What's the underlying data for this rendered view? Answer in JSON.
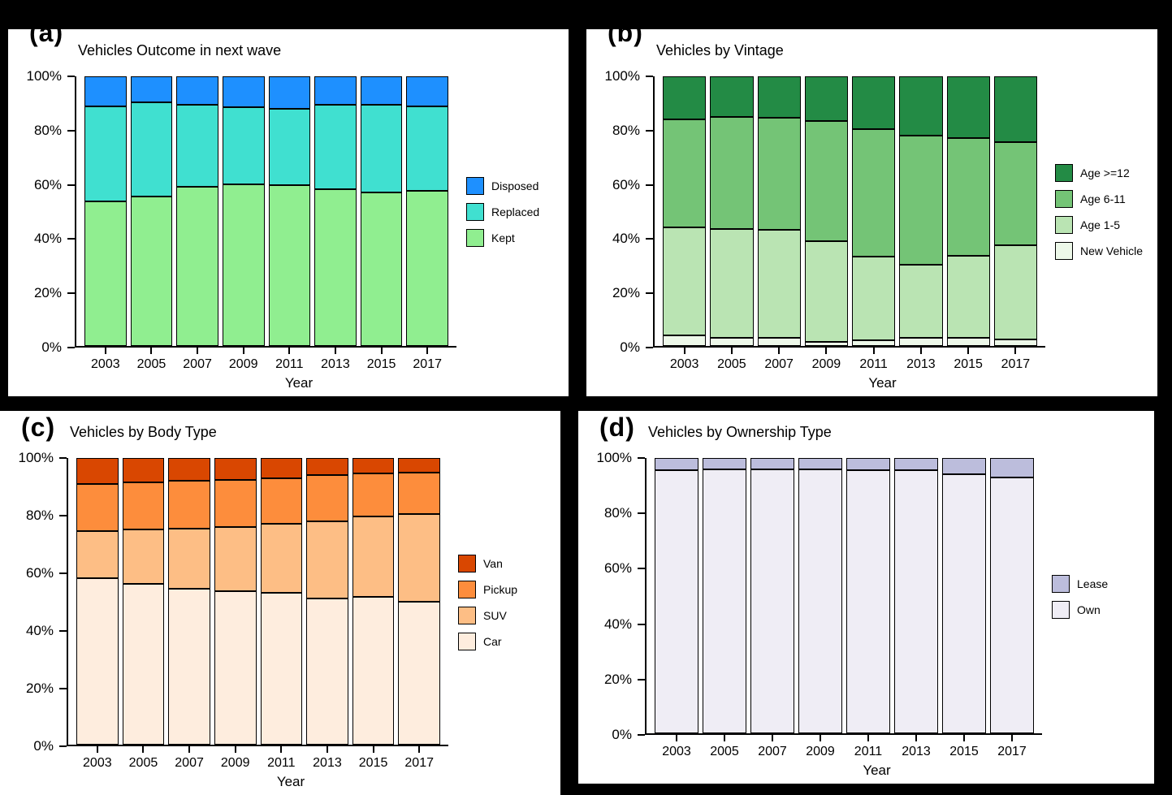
{
  "page": {
    "background": "#000000",
    "panel_background": "#ffffff"
  },
  "panels": [
    {
      "tag": "(a)"
    },
    {
      "tag": "(b)"
    },
    {
      "tag": "(c)"
    },
    {
      "tag": "(d)"
    }
  ],
  "chart_data": [
    {
      "type": "bar",
      "stacked": true,
      "title": "Vehicles Outcome in next wave",
      "xlabel": "Year",
      "ylabel": "",
      "ylim": [
        0,
        100
      ],
      "yticks": [
        "0%",
        "20%",
        "40%",
        "60%",
        "80%",
        "100%"
      ],
      "grid": false,
      "legend_position": "right",
      "categories": [
        "2003",
        "2005",
        "2007",
        "2009",
        "2011",
        "2013",
        "2015",
        "2017"
      ],
      "series": [
        {
          "name": "Kept",
          "color": "#90EE90",
          "values": [
            53.5,
            55.5,
            59,
            60,
            59.5,
            58,
            57,
            57.5
          ]
        },
        {
          "name": "Replaced",
          "color": "#40E0D0",
          "values": [
            35.5,
            35,
            30.5,
            28.5,
            28.5,
            31.5,
            32.5,
            31.5
          ]
        },
        {
          "name": "Disposed",
          "color": "#1E90FF",
          "values": [
            11,
            9.5,
            10.5,
            11.5,
            12,
            10.5,
            10.5,
            11
          ]
        }
      ]
    },
    {
      "type": "bar",
      "stacked": true,
      "title": "Vehicles by Vintage",
      "xlabel": "Year",
      "ylabel": "",
      "ylim": [
        0,
        100
      ],
      "yticks": [
        "0%",
        "20%",
        "40%",
        "60%",
        "80%",
        "100%"
      ],
      "grid": false,
      "legend_position": "right",
      "categories": [
        "2003",
        "2005",
        "2007",
        "2009",
        "2011",
        "2013",
        "2015",
        "2017"
      ],
      "series": [
        {
          "name": "New Vehicle",
          "color": "#EDF8E9",
          "values": [
            4,
            3,
            3,
            1.5,
            2,
            3,
            3,
            2.5
          ]
        },
        {
          "name": "Age 1-5",
          "color": "#BAE4B3",
          "values": [
            40,
            40.5,
            40,
            37.5,
            31,
            27,
            30.5,
            35
          ]
        },
        {
          "name": "Age 6-11",
          "color": "#74C476",
          "values": [
            40,
            41.5,
            41.5,
            44.5,
            47.5,
            48,
            43.5,
            38
          ]
        },
        {
          "name": "Age >=12",
          "color": "#238B45",
          "values": [
            16,
            15,
            15.5,
            16.5,
            19.5,
            22,
            23,
            24.5
          ]
        }
      ]
    },
    {
      "type": "bar",
      "stacked": true,
      "title": "Vehicles by Body Type",
      "xlabel": "Year",
      "ylabel": "",
      "ylim": [
        0,
        100
      ],
      "yticks": [
        "0%",
        "20%",
        "40%",
        "60%",
        "80%",
        "100%"
      ],
      "grid": false,
      "legend_position": "right",
      "categories": [
        "2003",
        "2005",
        "2007",
        "2009",
        "2011",
        "2013",
        "2015",
        "2017"
      ],
      "series": [
        {
          "name": "Car",
          "color": "#FEEDDE",
          "values": [
            58,
            56,
            54.5,
            53.5,
            53,
            51,
            51.5,
            50
          ]
        },
        {
          "name": "SUV",
          "color": "#FDBE85",
          "values": [
            16.5,
            19,
            21,
            22.5,
            24,
            27,
            28,
            30.5
          ]
        },
        {
          "name": "Pickup",
          "color": "#FD8D3C",
          "values": [
            16.5,
            16.5,
            16.5,
            16.5,
            16,
            16,
            15,
            14.5
          ]
        },
        {
          "name": "Van",
          "color": "#D94701",
          "values": [
            9,
            8.5,
            8,
            7.5,
            7,
            6,
            5.5,
            5
          ]
        }
      ]
    },
    {
      "type": "bar",
      "stacked": true,
      "title": "Vehicles by Ownership Type",
      "xlabel": "Year",
      "ylabel": "",
      "ylim": [
        0,
        100
      ],
      "yticks": [
        "0%",
        "20%",
        "40%",
        "60%",
        "80%",
        "100%"
      ],
      "grid": false,
      "legend_position": "right",
      "categories": [
        "2003",
        "2005",
        "2007",
        "2009",
        "2011",
        "2013",
        "2015",
        "2017"
      ],
      "series": [
        {
          "name": "Own",
          "color": "#EFEDF5",
          "values": [
            95.5,
            96,
            96,
            96,
            95.5,
            95.5,
            94,
            93
          ]
        },
        {
          "name": "Lease",
          "color": "#BCBDDC",
          "values": [
            4.5,
            4,
            4,
            4,
            4.5,
            4.5,
            6,
            7
          ]
        }
      ]
    }
  ]
}
